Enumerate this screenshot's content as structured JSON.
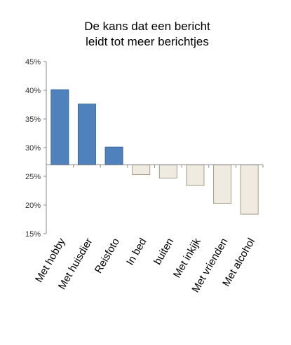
{
  "chart_data": {
    "type": "bar",
    "title_lines": [
      "De kans dat een bericht",
      "leidt tot meer berichtjes"
    ],
    "baseline": 27,
    "ylim": [
      15,
      45
    ],
    "yticks": [
      15,
      20,
      25,
      30,
      35,
      40,
      45
    ],
    "ytick_labels": [
      "15%",
      "20%",
      "25%",
      "30%",
      "35%",
      "40%",
      "45%"
    ],
    "categories": [
      "Met hobby",
      "Met huisdier",
      "Reisfoto",
      "In bed",
      "buiten",
      "Met inkijk",
      "Met vrienden",
      "Met alcohol"
    ],
    "values": [
      40.1,
      37.6,
      30.1,
      25.3,
      24.7,
      23.4,
      20.3,
      18.4
    ],
    "colors": {
      "positive": "#4f81bd",
      "positive_edge": "#3a6a9f",
      "negative": "#efebe0",
      "negative_edge": "#a59d87",
      "axis": "#888888"
    },
    "grid": false,
    "legend": "none"
  }
}
